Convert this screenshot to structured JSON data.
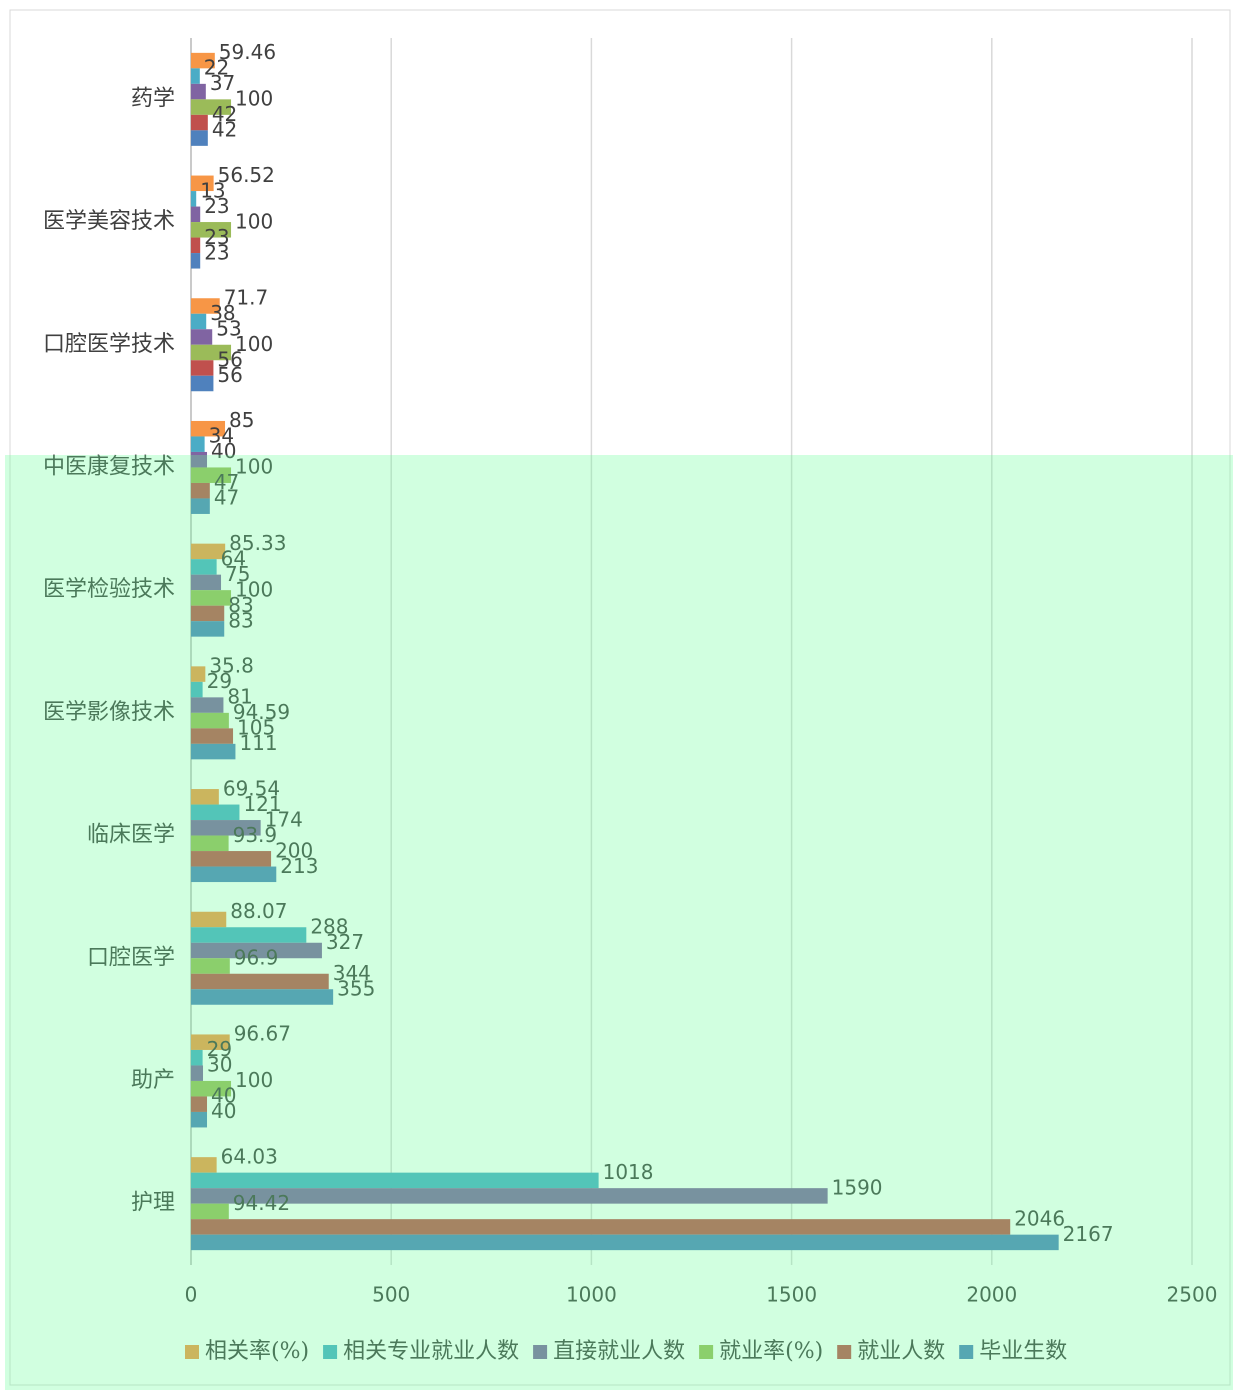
{
  "chart_data": {
    "type": "bar",
    "orientation": "horizontal",
    "categories": [
      "药学",
      "医学美容技术",
      "口腔医学技术",
      "中医康复技术",
      "医学检验技术",
      "医学影像技术",
      "临床医学",
      "口腔医学",
      "助产",
      "护理"
    ],
    "series": [
      {
        "name": "相关率(%)",
        "color": "#f79646",
        "values": [
          59.46,
          56.52,
          71.7,
          85,
          85.33,
          35.8,
          69.54,
          88.07,
          96.67,
          64.03
        ]
      },
      {
        "name": "相关专业就业人数",
        "color": "#4bacc6",
        "values": [
          22,
          13,
          38,
          34,
          64,
          29,
          121,
          288,
          29,
          1018
        ]
      },
      {
        "name": "直接就业人数",
        "color": "#8064a2",
        "values": [
          37,
          23,
          53,
          40,
          75,
          81,
          174,
          327,
          30,
          1590
        ]
      },
      {
        "name": "就业率(%)",
        "color": "#9bbb59",
        "values": [
          100,
          100,
          100,
          100,
          100,
          94.59,
          93.9,
          96.9,
          100,
          94.42
        ]
      },
      {
        "name": "就业人数",
        "color": "#c0504d",
        "values": [
          42,
          23,
          56,
          47,
          83,
          105,
          200,
          344,
          40,
          2046
        ]
      },
      {
        "name": "毕业生数",
        "color": "#4f81bd",
        "values": [
          42,
          23,
          56,
          47,
          83,
          111,
          213,
          355,
          40,
          2167
        ]
      }
    ],
    "xlim": [
      0,
      2500
    ],
    "xticks": [
      0,
      500,
      1000,
      1500,
      2000,
      2500
    ],
    "grid": true
  }
}
